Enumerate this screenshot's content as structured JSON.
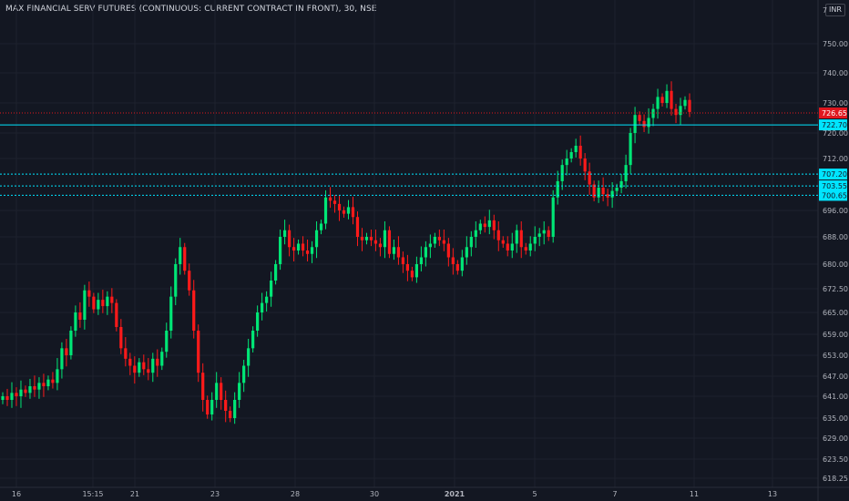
{
  "header": {
    "title": "MAX FINANCIAL SERV FUTURES (CONTINUOUS: CURRENT CONTRACT IN FRONT), 30, NSE",
    "currency": "INR"
  },
  "colors": {
    "background": "#131722",
    "grid": "#1e222d",
    "up": "#00e676",
    "down": "#ff1a1a",
    "level_line": "#00e5ff",
    "last_price": "#e0171f",
    "axis_text": "#b2b5be"
  },
  "chart_data": {
    "type": "candlestick",
    "title": "MAX FINANCIAL SERV FUTURES (CONTINUOUS: CURRENT CONTRACT IN FRONT), 30, NSE",
    "ylim": [
      616,
      753
    ],
    "y_ticks": [
      "618.25",
      "623.50",
      "629.00",
      "635.00",
      "641.00",
      "647.00",
      "653.00",
      "659.00",
      "665.00",
      "672.50",
      "680.00",
      "688.00",
      "696.00",
      "712.00",
      "720.00",
      "730.00",
      "740.00",
      "750.00"
    ],
    "y_top_partial": "7",
    "x_ticks": [
      "16",
      "15:15",
      "21",
      "23",
      "28",
      "30",
      "2021",
      "5",
      "7",
      "11",
      "13"
    ],
    "series_close": [
      641,
      640,
      642,
      641,
      643,
      642,
      644,
      643,
      645,
      644,
      646,
      645,
      649,
      655,
      653,
      660,
      665,
      663,
      672,
      670,
      666,
      669,
      667,
      670,
      668,
      661,
      655,
      652,
      650,
      648,
      651,
      649,
      648,
      652,
      650,
      654,
      660,
      670,
      680,
      685,
      678,
      672,
      660,
      648,
      640,
      636,
      640,
      645,
      640,
      637,
      635,
      640,
      645,
      650,
      655,
      660,
      665,
      668,
      670,
      675,
      680,
      688,
      690,
      685,
      684,
      686,
      684,
      683,
      685,
      690,
      692,
      700,
      699,
      698,
      696,
      695,
      697,
      694,
      688,
      687,
      688,
      687,
      686,
      685,
      690,
      683,
      685,
      682,
      680,
      678,
      676,
      680,
      682,
      685,
      686,
      688,
      687,
      686,
      682,
      680,
      678,
      682,
      685,
      688,
      690,
      692,
      691,
      693,
      690,
      687,
      686,
      684,
      686,
      690,
      685,
      684,
      686,
      688,
      689,
      690,
      688,
      700,
      705,
      710,
      712,
      714,
      716,
      712,
      708,
      704,
      700,
      703,
      701,
      700,
      702,
      703,
      705,
      710,
      720,
      726,
      724,
      722,
      725,
      728,
      732,
      730,
      734,
      728,
      726,
      729,
      731,
      727
    ],
    "levels": [
      {
        "value": 726.65,
        "label": "726.65",
        "kind": "last_price"
      },
      {
        "value": 722.7,
        "label": "722.70",
        "kind": "line"
      },
      {
        "value": 707.2,
        "label": "707.20",
        "kind": "dotted"
      },
      {
        "value": 703.55,
        "label": "703.55",
        "kind": "dotted"
      },
      {
        "value": 700.65,
        "label": "700.65",
        "kind": "dotted"
      }
    ],
    "grid": true,
    "legend": "none"
  }
}
